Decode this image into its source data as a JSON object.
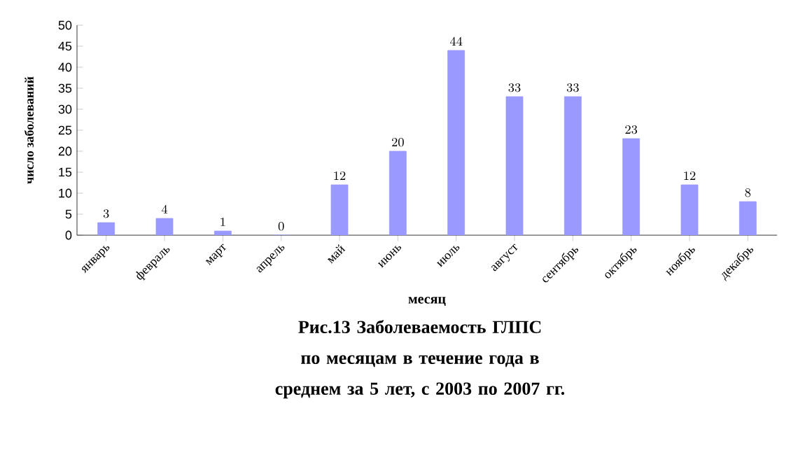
{
  "chart_data": {
    "type": "bar",
    "categories": [
      "январь",
      "февраль",
      "март",
      "апрель",
      "май",
      "июнь",
      "июль",
      "август",
      "сентябрь",
      "октябрь",
      "ноябрь",
      "декабрь"
    ],
    "values": [
      3,
      4,
      1,
      0,
      12,
      20,
      44,
      33,
      33,
      23,
      12,
      8
    ],
    "color": "#9999ff",
    "ylim": [
      0,
      50
    ],
    "yticks": [
      0,
      5,
      10,
      15,
      20,
      25,
      30,
      35,
      40,
      45,
      50
    ],
    "xlabel": "месяц",
    "ylabel": "число заболеваний",
    "data_labels": true,
    "grid": false,
    "annotations": [
      "Рис.13 Заболеваемость ГЛПС по месяцам в течение года в среднем за 5 лет, с 2003 по 2007 гг."
    ]
  }
}
